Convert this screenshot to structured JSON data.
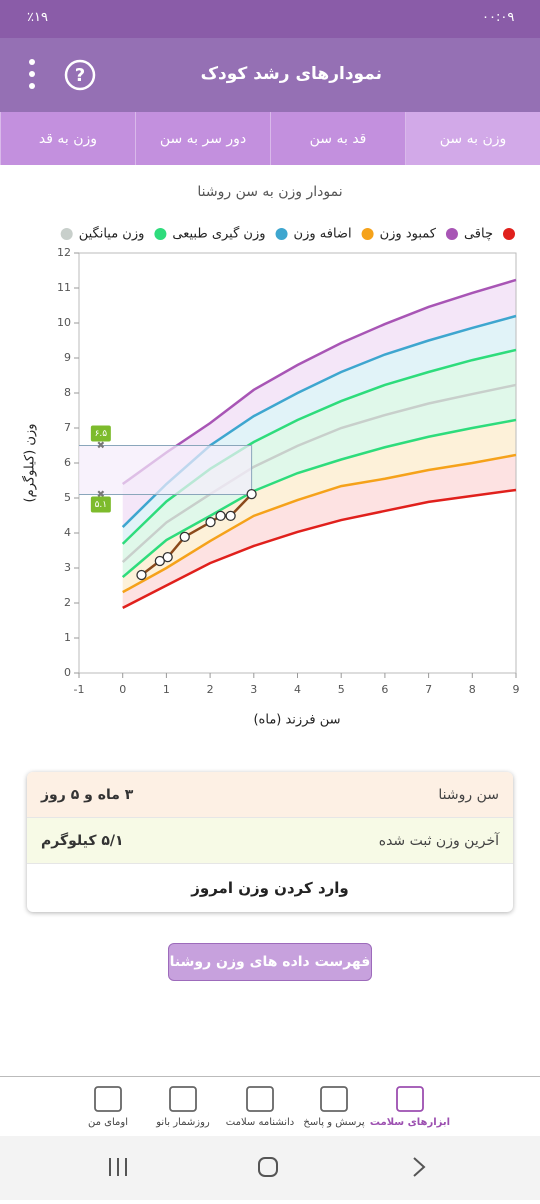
{
  "status_bar": {
    "time": "۰۰:۰۹",
    "battery": "٪۱۹"
  },
  "header": {
    "title": "نمودارهای رشد کودک"
  },
  "tabs": [
    "وزن به سن",
    "قد به سن",
    "دور سر به سن",
    "وزن به قد"
  ],
  "chart_data": {
    "type": "line",
    "title": "نمودار وزن به سن روشنا",
    "x_label": "سن فرزند (ماه)",
    "y_label": "وزن (کیلوگرم)",
    "x": [
      0,
      1,
      2,
      3,
      4,
      5,
      6,
      7,
      8,
      9
    ],
    "series": [
      {
        "name": null,
        "color": "#e0201c",
        "values": [
          1.86,
          2.5,
          3.14,
          3.63,
          4.03,
          4.37,
          4.63,
          4.89,
          5.06,
          5.23
        ]
      },
      {
        "name": "چاقی",
        "color": "#a855b5",
        "values": [
          5.4,
          6.3,
          7.14,
          8.09,
          8.8,
          9.43,
          9.97,
          10.46,
          10.86,
          11.23
        ]
      },
      {
        "name": "کمبود وزن",
        "color": "#f5a21a",
        "values": [
          2.31,
          3.0,
          3.77,
          4.49,
          4.94,
          5.34,
          5.55,
          5.8,
          6.0,
          6.23
        ]
      },
      {
        "name": "اضافه وزن",
        "color": "#3ea6cf",
        "values": [
          4.17,
          5.4,
          6.5,
          7.34,
          8.0,
          8.6,
          9.1,
          9.5,
          9.86,
          10.2
        ]
      },
      {
        "name": "وزن گیری طبیعی",
        "color": "#2edc7c",
        "values": [
          3.69,
          4.9,
          5.83,
          6.6,
          7.23,
          7.77,
          8.23,
          8.6,
          8.94,
          9.23
        ]
      },
      {
        "name": "وزن میانگین",
        "color": "#c8cfcb",
        "values": [
          3.17,
          4.3,
          5.11,
          5.89,
          6.49,
          7.0,
          7.37,
          7.7,
          7.97,
          8.23
        ]
      },
      {
        "name": null,
        "color": "#2edc7c",
        "values": [
          2.74,
          3.8,
          4.49,
          5.2,
          5.71,
          6.1,
          6.45,
          6.75,
          7.0,
          7.23
        ]
      }
    ],
    "measurements": {
      "color": "#8b4a1c",
      "x": [
        0.43,
        0.85,
        1.03,
        1.42,
        2.01,
        2.24,
        2.47,
        2.95
      ],
      "values": [
        2.8,
        3.2,
        3.31,
        3.89,
        4.31,
        4.49,
        4.49,
        5.11
      ]
    },
    "range_markers": [
      {
        "value": 6.5,
        "label": "۶.۵"
      },
      {
        "value": 5.1,
        "label": "۵.۱"
      }
    ],
    "xlim": [
      -1,
      9
    ],
    "xticks": [
      -1,
      0,
      1,
      2,
      3,
      4,
      5,
      6,
      7,
      8,
      9
    ],
    "ylim": [
      0,
      12
    ],
    "yticks": [
      0,
      1,
      2,
      3,
      4,
      5,
      6,
      7,
      8,
      9,
      10,
      11,
      12
    ]
  },
  "info_card": {
    "rows": [
      [
        "سن روشنا",
        "۳ ماه و ۵ روز"
      ],
      [
        "آخرین وزن ثبت شده",
        "۵/۱ کیلوگرم"
      ]
    ],
    "action": "وارد کردن وزن امروز"
  },
  "list_button": "فهرست داده های وزن روشنا",
  "bottom_nav": [
    "ابزارهای سلامت",
    "پرسش و پاسخ",
    "دانشنامه سلامت",
    "روزشمار بانو",
    "اومای من"
  ]
}
